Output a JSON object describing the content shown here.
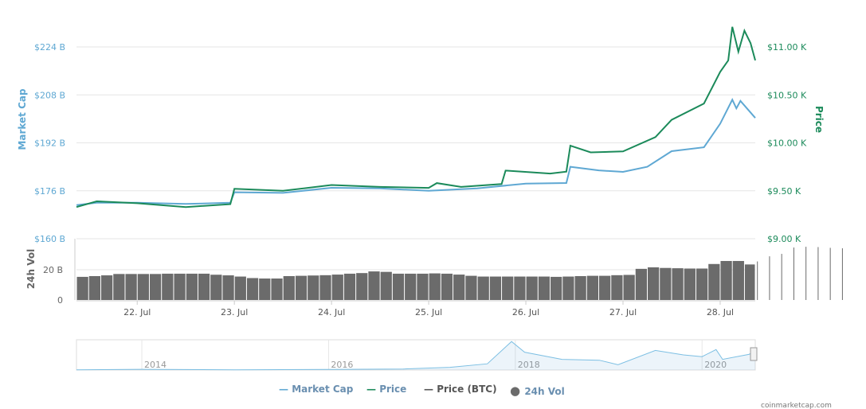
{
  "chart_data": [
    {
      "type": "line",
      "left_axis": {
        "label": "Market Cap",
        "ticks": [
          "$160 B",
          "$176 B",
          "$192 B",
          "$208 B",
          "$224 B"
        ],
        "ylim": [
          160,
          224
        ],
        "unit": "B USD",
        "color": "#5fa8d3"
      },
      "right_axis": {
        "label": "Price",
        "ticks": [
          "$9.00 K",
          "$9.50 K",
          "$10.00 K",
          "$10.50 K",
          "$11.00 K"
        ],
        "ylim": [
          9.0,
          11.0
        ],
        "unit": "K USD",
        "color": "#1b8a5a"
      },
      "x_ticks": [
        "22. Jul",
        "23. Jul",
        "24. Jul",
        "25. Jul",
        "26. Jul",
        "27. Jul",
        "28. Jul"
      ],
      "xlim": [
        "2020-07-21 09:00",
        "2020-07-28 08:40"
      ],
      "grid": true,
      "series": [
        {
          "name": "Market Cap",
          "color": "#5fa8d3",
          "points": [
            [
              "2020-07-21 09:00",
              171.2
            ],
            [
              "2020-07-21 14:00",
              172.0
            ],
            [
              "2020-07-22 00:00",
              172.0
            ],
            [
              "2020-07-22 12:00",
              171.6
            ],
            [
              "2020-07-22 23:00",
              172.0
            ],
            [
              "2020-07-23 00:00",
              175.5
            ],
            [
              "2020-07-23 12:00",
              175.3
            ],
            [
              "2020-07-24 00:00",
              177.0
            ],
            [
              "2020-07-24 12:00",
              176.8
            ],
            [
              "2020-07-25 00:00",
              176.0
            ],
            [
              "2020-07-25 12:00",
              176.8
            ],
            [
              "2020-07-26 00:00",
              178.4
            ],
            [
              "2020-07-26 10:00",
              178.6
            ],
            [
              "2020-07-26 11:00",
              184.0
            ],
            [
              "2020-07-26 18:00",
              182.8
            ],
            [
              "2020-07-27 00:00",
              182.3
            ],
            [
              "2020-07-27 06:00",
              184.0
            ],
            [
              "2020-07-27 12:00",
              189.2
            ],
            [
              "2020-07-27 20:00",
              190.5
            ],
            [
              "2020-07-28 00:00",
              198.4
            ],
            [
              "2020-07-28 03:00",
              206.4
            ],
            [
              "2020-07-28 04:00",
              203.5
            ],
            [
              "2020-07-28 05:00",
              206.0
            ],
            [
              "2020-07-28 08:40",
              200.3
            ]
          ]
        },
        {
          "name": "Price",
          "color": "#1b8a5a",
          "points": [
            [
              "2020-07-21 09:00",
              9.33
            ],
            [
              "2020-07-21 14:00",
              9.39
            ],
            [
              "2020-07-22 00:00",
              9.37
            ],
            [
              "2020-07-22 12:00",
              9.33
            ],
            [
              "2020-07-22 23:00",
              9.36
            ],
            [
              "2020-07-23 00:00",
              9.52
            ],
            [
              "2020-07-23 12:00",
              9.5
            ],
            [
              "2020-07-24 00:00",
              9.56
            ],
            [
              "2020-07-24 12:00",
              9.54
            ],
            [
              "2020-07-25 00:00",
              9.53
            ],
            [
              "2020-07-25 02:00",
              9.58
            ],
            [
              "2020-07-25 08:00",
              9.54
            ],
            [
              "2020-07-25 18:00",
              9.57
            ],
            [
              "2020-07-25 19:00",
              9.71
            ],
            [
              "2020-07-26 06:00",
              9.68
            ],
            [
              "2020-07-26 10:00",
              9.7
            ],
            [
              "2020-07-26 11:00",
              9.97
            ],
            [
              "2020-07-26 16:00",
              9.9
            ],
            [
              "2020-07-27 00:00",
              9.91
            ],
            [
              "2020-07-27 08:00",
              10.06
            ],
            [
              "2020-07-27 12:00",
              10.24
            ],
            [
              "2020-07-27 20:00",
              10.41
            ],
            [
              "2020-07-28 00:00",
              10.74
            ],
            [
              "2020-07-28 02:00",
              10.86
            ],
            [
              "2020-07-28 03:00",
              11.21
            ],
            [
              "2020-07-28 04:30",
              10.95
            ],
            [
              "2020-07-28 06:00",
              11.17
            ],
            [
              "2020-07-28 07:30",
              11.04
            ],
            [
              "2020-07-28 08:40",
              10.86
            ]
          ]
        }
      ]
    },
    {
      "type": "bar",
      "axis_label": "24h Vol",
      "ticks": [
        "0",
        "20 B"
      ],
      "ylim": [
        0,
        40
      ],
      "unit": "B USD",
      "color": "#6b6b6b",
      "interval_hours": 3,
      "start": "2020-07-21 09:00",
      "values": [
        15.3,
        15.8,
        16.3,
        17.2,
        17.2,
        17.2,
        17.2,
        17.4,
        17.4,
        17.4,
        17.4,
        16.7,
        16.3,
        15.5,
        14.5,
        14.2,
        14.2,
        15.8,
        16,
        16.2,
        16.4,
        16.8,
        17.4,
        17.8,
        18.9,
        18.6,
        17.4,
        17.4,
        17.4,
        17.6,
        17.4,
        16.8,
        16,
        15.5,
        15.5,
        15.5,
        15.5,
        15.5,
        15.5,
        15.3,
        15.5,
        15.8,
        16,
        16,
        16.4,
        16.6,
        20.6,
        21.6,
        21.2,
        21,
        20.8,
        20.8,
        23.8,
        25.8,
        25.8,
        23.5,
        25.5,
        28.9,
        30.5,
        34.7,
        35.2,
        35,
        34.5,
        34.2
      ]
    },
    {
      "type": "area",
      "role": "navigator",
      "x_ticks": [
        "2014",
        "2016",
        "2018",
        "2020"
      ],
      "points": [
        [
          2013.3,
          1.5
        ],
        [
          2014.0,
          8
        ],
        [
          2015.0,
          3
        ],
        [
          2016.0,
          6
        ],
        [
          2016.8,
          12
        ],
        [
          2017.3,
          30
        ],
        [
          2017.7,
          70
        ],
        [
          2017.96,
          320
        ],
        [
          2018.1,
          200
        ],
        [
          2018.5,
          120
        ],
        [
          2018.9,
          110
        ],
        [
          2019.1,
          60
        ],
        [
          2019.5,
          220
        ],
        [
          2019.8,
          170
        ],
        [
          2020.0,
          150
        ],
        [
          2020.15,
          230
        ],
        [
          2020.22,
          120
        ],
        [
          2020.5,
          175
        ],
        [
          2020.57,
          205
        ]
      ]
    }
  ],
  "legend": [
    {
      "label": "Market Cap",
      "color": "#5fa8d3"
    },
    {
      "label": "Price",
      "color": "#1b8a5a"
    },
    {
      "label": "Price (BTC)",
      "color": "#555555"
    },
    {
      "label": "24h Vol",
      "color": "#6b6b6b"
    }
  ],
  "credit": "coinmarketcap.com"
}
